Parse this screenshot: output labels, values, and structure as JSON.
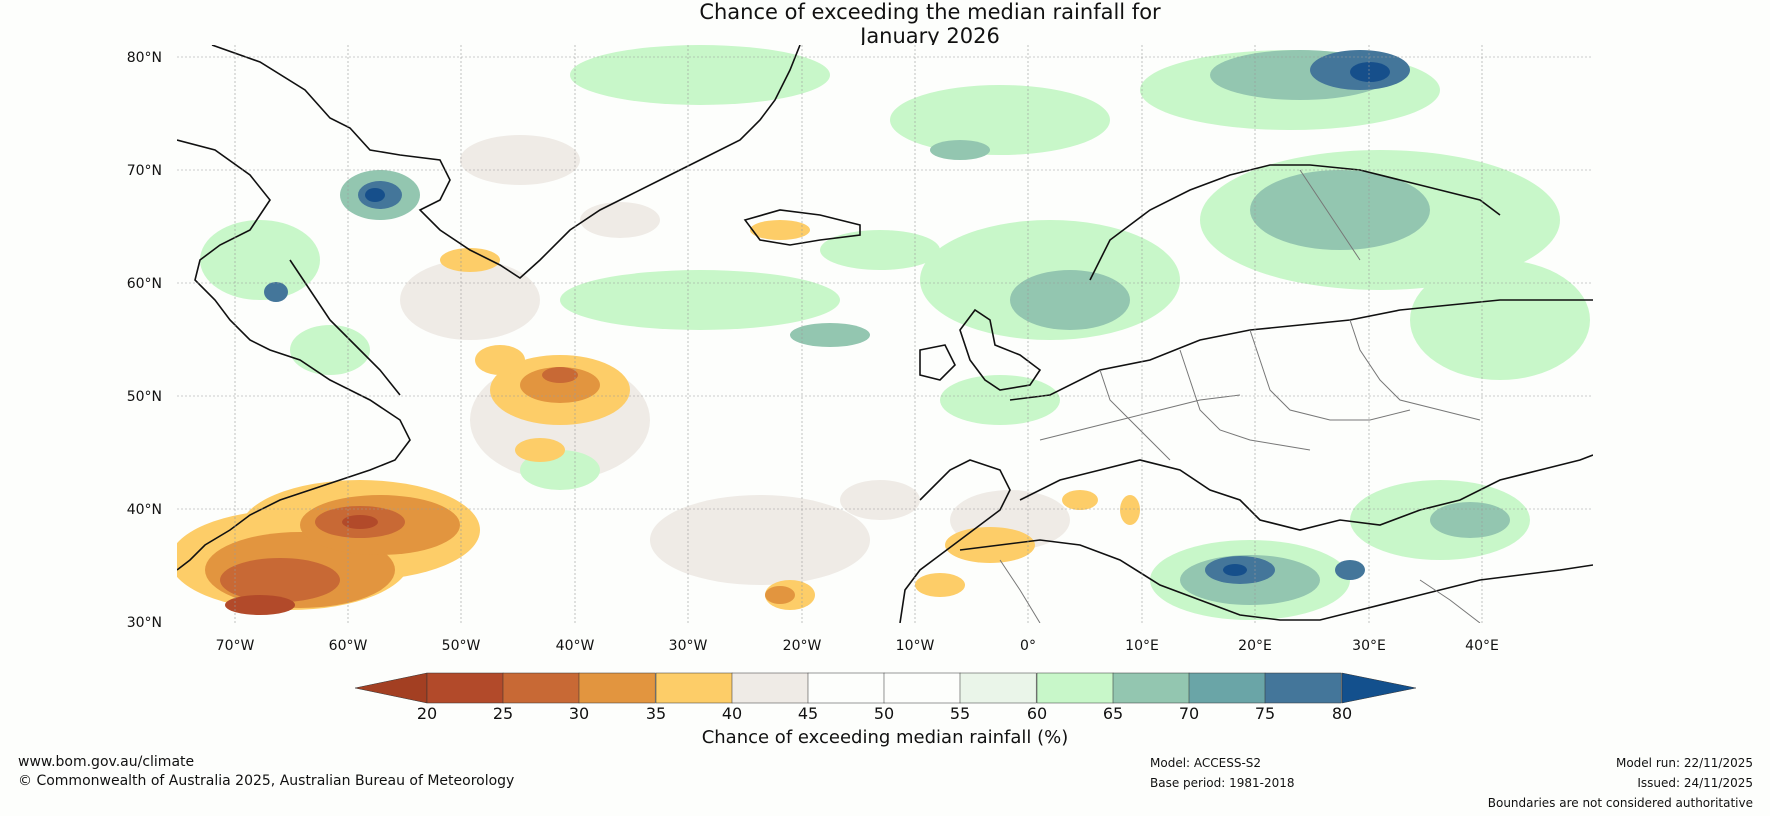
{
  "title": {
    "line1": "Chance of exceeding the median rainfall for",
    "line2": "January 2026"
  },
  "map": {
    "lat_labels": [
      "80°N",
      "70°N",
      "60°N",
      "50°N",
      "40°N",
      "30°N"
    ],
    "lon_labels": [
      "70°W",
      "60°W",
      "50°W",
      "40°W",
      "30°W",
      "20°W",
      "10°W",
      "0°",
      "10°E",
      "20°E",
      "30°E",
      "40°E"
    ],
    "lat_range": [
      30,
      81
    ],
    "lon_range": [
      -75,
      50
    ]
  },
  "colorbar": {
    "ticks": [
      "20",
      "25",
      "30",
      "35",
      "40",
      "45",
      "50",
      "55",
      "60",
      "65",
      "70",
      "75",
      "80"
    ],
    "colors": [
      "#b24a2a",
      "#c86935",
      "#e2953f",
      "#fdcd68",
      "#efebe6",
      "#fdfefc",
      "#fdfefc",
      "#eaf5e9",
      "#c8f7c9",
      "#93c6b0",
      "#6aa5a7",
      "#44769a",
      "#164f8b"
    ],
    "low_extend_color": "#a33f22",
    "high_extend_color": "#13508d",
    "label": "Chance of exceeding median rainfall (%)"
  },
  "footer": {
    "website": "www.bom.gov.au/climate",
    "copyright": "© Commonwealth of Australia 2025, Australian Bureau of Meteorology",
    "model": "Model: ACCESS-S2",
    "base_period": "Base period: 1981-2018",
    "model_run": "Model run: 22/11/2025",
    "issued": "Issued: 24/11/2025",
    "disclaimer": "Boundaries are not considered authoritative"
  }
}
